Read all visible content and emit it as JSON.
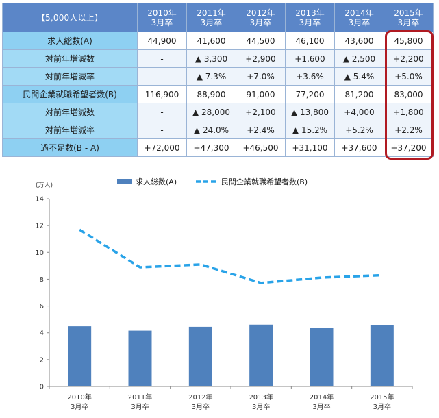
{
  "table": {
    "corner_label": "【5,000人以上】",
    "columns": [
      {
        "year": "2010年",
        "grad": "3月卒"
      },
      {
        "year": "2011年",
        "grad": "3月卒"
      },
      {
        "year": "2012年",
        "grad": "3月卒"
      },
      {
        "year": "2013年",
        "grad": "3月卒"
      },
      {
        "year": "2014年",
        "grad": "3月卒"
      },
      {
        "year": "2015年",
        "grad": "3月卒"
      }
    ],
    "rows": [
      {
        "label": "求人総数(A)",
        "type": "main",
        "values": [
          "44,900",
          "41,600",
          "44,500",
          "46,100",
          "43,600",
          "45,800"
        ]
      },
      {
        "label": "対前年増減数",
        "type": "sub",
        "values": [
          "-",
          "▲ 3,300",
          "+2,900",
          "+1,600",
          "▲ 2,500",
          "+2,200"
        ]
      },
      {
        "label": "対前年増減率",
        "type": "sub",
        "values": [
          "-",
          "▲ 7.3%",
          "+7.0%",
          "+3.6%",
          "▲ 5.4%",
          "+5.0%"
        ]
      },
      {
        "label": "民間企業就職希望者数(B)",
        "type": "main",
        "values": [
          "116,900",
          "88,900",
          "91,000",
          "77,200",
          "81,200",
          "83,000"
        ]
      },
      {
        "label": "対前年増減数",
        "type": "sub",
        "values": [
          "-",
          "▲ 28,000",
          "+2,100",
          "▲ 13,800",
          "+4,000",
          "+1,800"
        ]
      },
      {
        "label": "対前年増減率",
        "type": "sub",
        "values": [
          "-",
          "▲ 24.0%",
          "+2.4%",
          "▲ 15.2%",
          "+5.2%",
          "+2.2%"
        ]
      },
      {
        "label": "過不足数(B - A)",
        "type": "main",
        "values": [
          "+72,000",
          "+47,300",
          "+46,500",
          "+31,100",
          "+37,600",
          "+37,200"
        ]
      }
    ]
  },
  "chart_data": {
    "type": "bar",
    "unit_label": "(万人)",
    "categories": [
      {
        "year": "2010年",
        "grad": "3月卒"
      },
      {
        "year": "2011年",
        "grad": "3月卒"
      },
      {
        "year": "2012年",
        "grad": "3月卒"
      },
      {
        "year": "2013年",
        "grad": "3月卒"
      },
      {
        "year": "2014年",
        "grad": "3月卒"
      },
      {
        "year": "2015年",
        "grad": "3月卒"
      }
    ],
    "series": [
      {
        "name": "求人総数(A)",
        "kind": "bar",
        "color": "#4f81bd",
        "values": [
          4.49,
          4.16,
          4.45,
          4.61,
          4.36,
          4.58
        ]
      },
      {
        "name": "民間企業就職希望者数(B)",
        "kind": "dashed-line",
        "color": "#29a3e8",
        "values": [
          11.69,
          8.89,
          9.1,
          7.72,
          8.12,
          8.3
        ]
      }
    ],
    "ylim": [
      0,
      14
    ],
    "yticks": [
      0,
      2,
      4,
      6,
      8,
      10,
      12,
      14
    ],
    "grid": false,
    "legend": "top-center"
  }
}
